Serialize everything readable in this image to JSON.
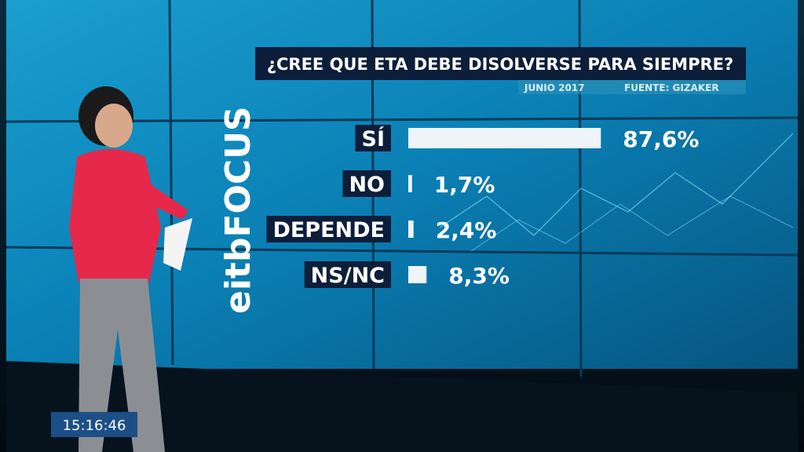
{
  "chart_data": {
    "type": "bar",
    "orientation": "horizontal",
    "title": "¿CREE QUE ETA DEBE DISOLVERSE PARA SIEMPRE?",
    "subtitle": [
      "JUNIO 2017",
      "FUENTE: GIZAKER"
    ],
    "categories": [
      "SÍ",
      "NO",
      "DEPENDE",
      "NS/NC"
    ],
    "values": [
      87.6,
      1.7,
      2.4,
      8.3
    ],
    "value_labels": [
      "87,6%",
      "1,7%",
      "2,4%",
      "8,3%"
    ],
    "color": "#eef4f7"
  },
  "overlay": {
    "logo": "eitbFOCUS",
    "clock": "15:16:46"
  }
}
